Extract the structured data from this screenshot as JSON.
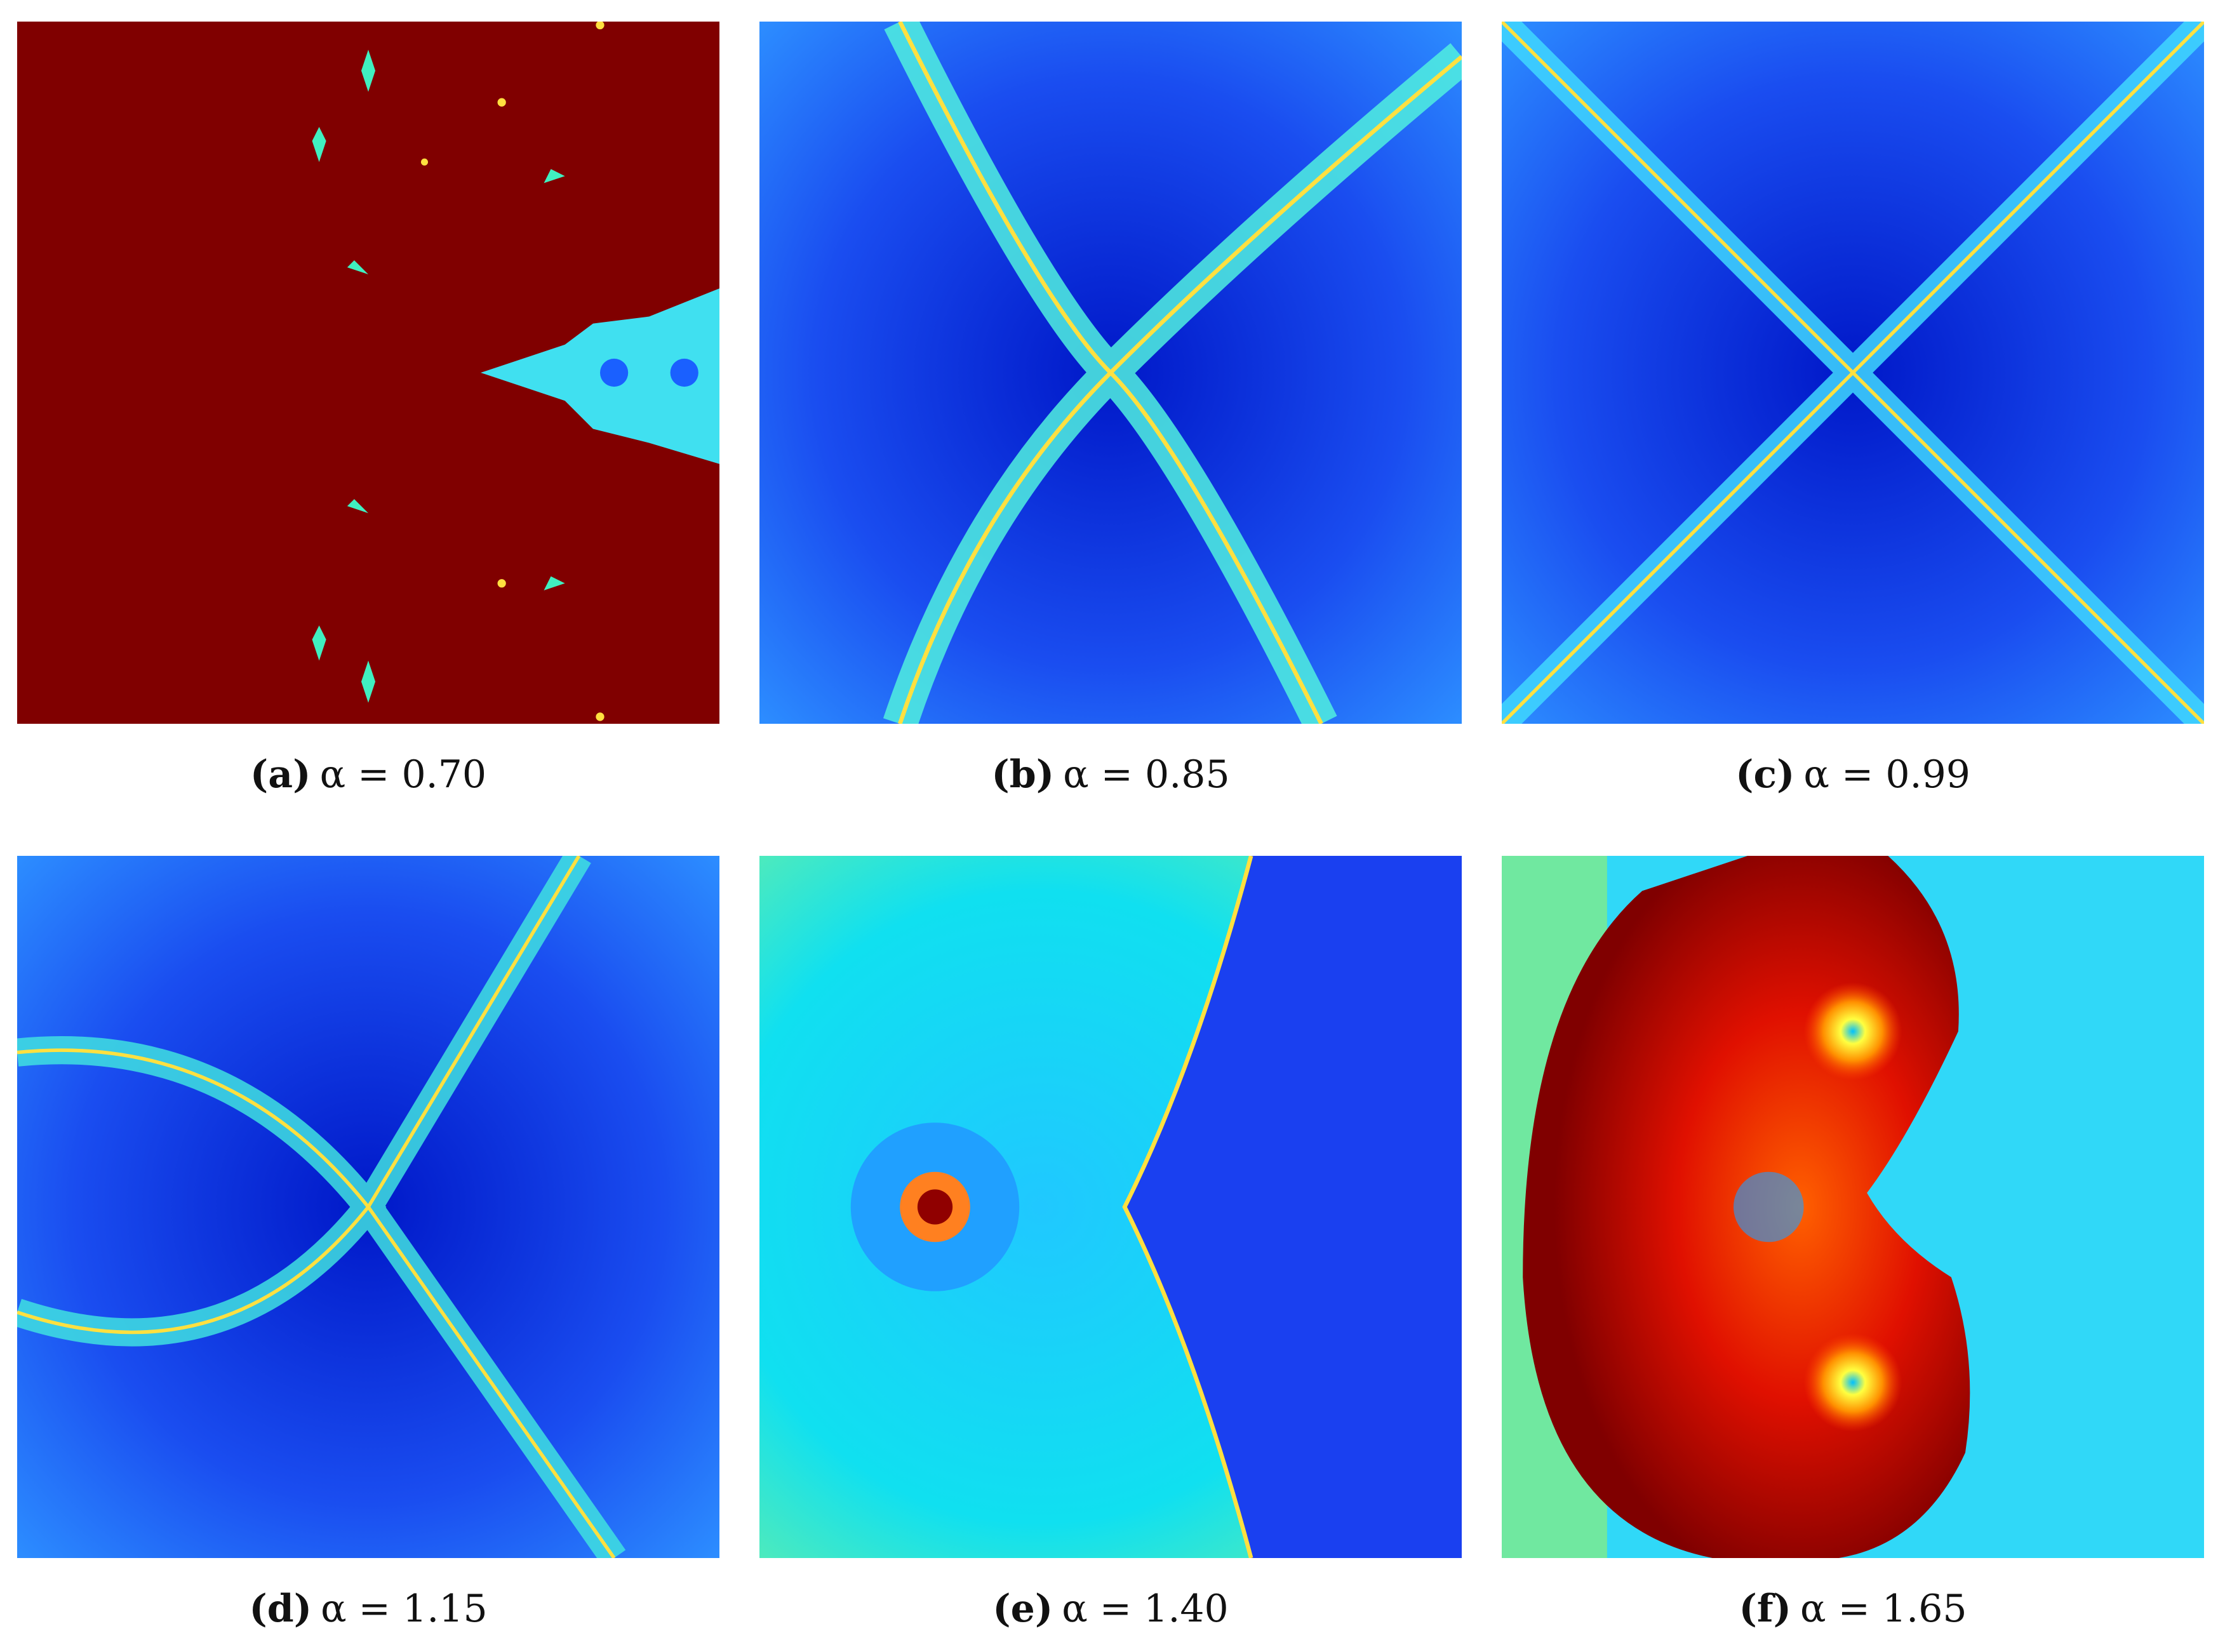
{
  "figure": {
    "panels": [
      {
        "tag": "(a)",
        "equation": "α = 0.70"
      },
      {
        "tag": "(b)",
        "equation": "α = 0.85"
      },
      {
        "tag": "(c)",
        "equation": "α = 0.99"
      },
      {
        "tag": "(d)",
        "equation": "α = 1.15"
      },
      {
        "tag": "(e)",
        "equation": "α = 1.40"
      },
      {
        "tag": "(f)",
        "equation": "α = 1.65"
      }
    ]
  }
}
